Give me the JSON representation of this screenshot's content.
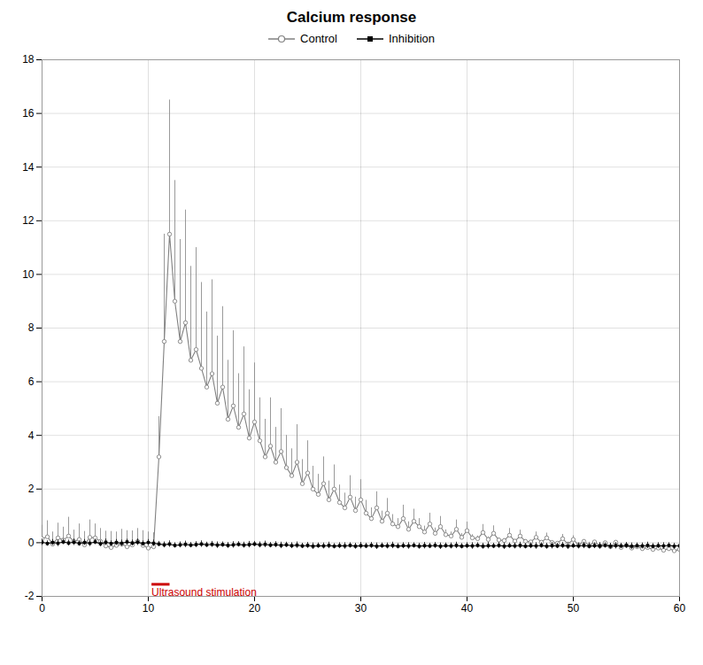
{
  "chart_data": {
    "type": "line",
    "title": "Calcium response",
    "x": [
      0,
      0.5,
      1,
      1.5,
      2,
      2.5,
      3,
      3.5,
      4,
      4.5,
      5,
      5.5,
      6,
      6.5,
      7,
      7.5,
      8,
      8.5,
      9,
      9.5,
      10,
      10.5,
      11,
      11.5,
      12,
      12.5,
      13,
      13.5,
      14,
      14.5,
      15,
      15.5,
      16,
      16.5,
      17,
      17.5,
      18,
      18.5,
      19,
      19.5,
      20,
      20.5,
      21,
      21.5,
      22,
      22.5,
      23,
      23.5,
      24,
      24.5,
      25,
      25.5,
      26,
      26.5,
      27,
      27.5,
      28,
      28.5,
      29,
      29.5,
      30,
      30.5,
      31,
      31.5,
      32,
      32.5,
      33,
      33.5,
      34,
      34.5,
      35,
      35.5,
      36,
      36.5,
      37,
      37.5,
      38,
      38.5,
      39,
      39.5,
      40,
      40.5,
      41,
      41.5,
      42,
      42.5,
      43,
      43.5,
      44,
      44.5,
      45,
      45.5,
      46,
      46.5,
      47,
      47.5,
      48,
      48.5,
      49,
      49.5,
      50,
      50.5,
      51,
      51.5,
      52,
      52.5,
      53,
      53.5,
      54,
      54.5,
      55,
      55.5,
      56,
      56.5,
      57,
      57.5,
      58,
      58.5,
      59,
      59.5,
      60
    ],
    "series": [
      {
        "name": "Control",
        "color": "#808080",
        "marker": "circle",
        "values": [
          0.15,
          0.22,
          -0.05,
          0.18,
          0.1,
          0.25,
          0.05,
          0.12,
          -0.08,
          0.2,
          0.18,
          0.05,
          -0.12,
          -0.18,
          -0.1,
          -0.05,
          -0.15,
          -0.08,
          0.05,
          -0.1,
          -0.2,
          -0.15,
          3.2,
          7.5,
          11.5,
          9.0,
          7.5,
          8.2,
          6.8,
          7.2,
          6.5,
          5.8,
          6.3,
          5.2,
          5.8,
          4.6,
          5.1,
          4.3,
          4.8,
          3.9,
          4.5,
          3.8,
          3.2,
          3.6,
          3.0,
          3.4,
          2.8,
          2.5,
          3.0,
          2.2,
          2.6,
          2.0,
          1.8,
          2.2,
          1.6,
          2.0,
          1.5,
          1.3,
          1.7,
          1.2,
          1.6,
          1.1,
          0.9,
          1.3,
          0.8,
          1.1,
          0.7,
          0.6,
          0.9,
          0.5,
          0.8,
          0.6,
          0.4,
          0.7,
          0.35,
          0.6,
          0.3,
          0.25,
          0.5,
          0.2,
          0.45,
          0.18,
          0.15,
          0.38,
          0.12,
          0.35,
          0.1,
          0.08,
          0.28,
          0.06,
          0.25,
          0.05,
          0.03,
          0.2,
          0.02,
          0.18,
          0.01,
          -0.02,
          0.15,
          -0.05,
          0.12,
          -0.08,
          0.05,
          -0.1,
          0.03,
          -0.12,
          0.0,
          -0.15,
          0.02,
          -0.18,
          -0.1,
          -0.2,
          -0.15,
          -0.22,
          -0.18,
          -0.25,
          -0.2,
          -0.28,
          -0.22,
          -0.3,
          -0.25
        ],
        "error_upper": [
          0.5,
          0.6,
          0.45,
          0.55,
          0.48,
          0.7,
          0.42,
          0.58,
          0.5,
          0.65,
          0.52,
          0.48,
          0.55,
          0.6,
          0.5,
          0.55,
          0.6,
          0.52,
          0.48,
          0.55,
          0.6,
          0.52,
          1.5,
          4.0,
          5.0,
          4.5,
          3.8,
          4.2,
          3.5,
          3.8,
          3.2,
          2.8,
          3.5,
          2.5,
          3.0,
          2.2,
          2.8,
          2.0,
          2.5,
          1.8,
          2.2,
          1.6,
          1.4,
          1.8,
          1.3,
          1.6,
          1.2,
          1.0,
          1.4,
          0.9,
          1.2,
          0.85,
          0.75,
          1.0,
          0.7,
          0.9,
          0.65,
          0.55,
          0.8,
          0.5,
          0.75,
          0.48,
          0.4,
          0.6,
          0.38,
          0.55,
          0.35,
          0.3,
          0.5,
          0.28,
          0.45,
          0.3,
          0.22,
          0.4,
          0.2,
          0.38,
          0.18,
          0.15,
          0.35,
          0.14,
          0.32,
          0.12,
          0.1,
          0.3,
          0.1,
          0.28,
          0.08,
          0.07,
          0.25,
          0.06,
          0.22,
          0.05,
          0.04,
          0.2,
          0.04,
          0.18,
          0.03,
          0.03,
          0.16,
          0.03,
          0.14,
          0.03,
          0.03,
          0.12,
          0.03,
          0.12,
          0.02,
          0.12,
          0.02,
          0.12,
          0.02,
          0.12,
          0.02,
          0.12,
          0.02,
          0.12,
          0.02,
          0.12,
          0.02,
          0.12,
          0.02
        ]
      },
      {
        "name": "Inhibition",
        "color": "#000000",
        "marker": "square",
        "values": [
          0.02,
          -0.03,
          0.01,
          -0.02,
          0.03,
          -0.01,
          0.02,
          -0.03,
          0.01,
          -0.02,
          0.03,
          -0.04,
          0.02,
          -0.03,
          0.01,
          -0.02,
          0.03,
          -0.01,
          0.02,
          -0.03,
          0.01,
          -0.02,
          -0.05,
          -0.08,
          -0.05,
          -0.1,
          -0.08,
          -0.06,
          -0.09,
          -0.07,
          -0.05,
          -0.08,
          -0.06,
          -0.09,
          -0.07,
          -0.1,
          -0.08,
          -0.06,
          -0.09,
          -0.07,
          -0.05,
          -0.08,
          -0.06,
          -0.09,
          -0.07,
          -0.1,
          -0.08,
          -0.11,
          -0.09,
          -0.12,
          -0.1,
          -0.13,
          -0.11,
          -0.12,
          -0.1,
          -0.13,
          -0.11,
          -0.12,
          -0.1,
          -0.13,
          -0.11,
          -0.12,
          -0.1,
          -0.13,
          -0.11,
          -0.12,
          -0.1,
          -0.13,
          -0.11,
          -0.12,
          -0.1,
          -0.13,
          -0.11,
          -0.12,
          -0.1,
          -0.13,
          -0.11,
          -0.12,
          -0.1,
          -0.13,
          -0.11,
          -0.12,
          -0.1,
          -0.13,
          -0.11,
          -0.12,
          -0.1,
          -0.13,
          -0.11,
          -0.12,
          -0.1,
          -0.13,
          -0.11,
          -0.12,
          -0.1,
          -0.13,
          -0.11,
          -0.12,
          -0.1,
          -0.13,
          -0.11,
          -0.12,
          -0.1,
          -0.13,
          -0.11,
          -0.12,
          -0.1,
          -0.13,
          -0.11,
          -0.12,
          -0.1,
          -0.13,
          -0.11,
          -0.12,
          -0.1,
          -0.13,
          -0.11,
          -0.12,
          -0.1,
          -0.13,
          -0.11
        ],
        "error": [
          0.12,
          0.1,
          0.11,
          0.12,
          0.1,
          0.11,
          0.12,
          0.1,
          0.11,
          0.12,
          0.1,
          0.11,
          0.12,
          0.1,
          0.11,
          0.12,
          0.1,
          0.11,
          0.12,
          0.1,
          0.11,
          0.12,
          0.1,
          0.11,
          0.12,
          0.1,
          0.11,
          0.12,
          0.1,
          0.11,
          0.12,
          0.1,
          0.11,
          0.12,
          0.1,
          0.11,
          0.12,
          0.1,
          0.11,
          0.12,
          0.1,
          0.11,
          0.12,
          0.1,
          0.11,
          0.12,
          0.1,
          0.11,
          0.12,
          0.1,
          0.11,
          0.12,
          0.1,
          0.11,
          0.12,
          0.1,
          0.11,
          0.12,
          0.1,
          0.11,
          0.12,
          0.1,
          0.11,
          0.12,
          0.1,
          0.11,
          0.12,
          0.1,
          0.11,
          0.12,
          0.1,
          0.11,
          0.12,
          0.1,
          0.11,
          0.12,
          0.1,
          0.11,
          0.12,
          0.1,
          0.11,
          0.12,
          0.1,
          0.11,
          0.12,
          0.1,
          0.11,
          0.12,
          0.1,
          0.11,
          0.12,
          0.1,
          0.11,
          0.12,
          0.1,
          0.11,
          0.12,
          0.1,
          0.11,
          0.12,
          0.1,
          0.11,
          0.12,
          0.1,
          0.11,
          0.12,
          0.1,
          0.11,
          0.12,
          0.1,
          0.11,
          0.12,
          0.1,
          0.11,
          0.12,
          0.1,
          0.11,
          0.12,
          0.1,
          0.11,
          0.11
        ]
      }
    ],
    "annotations": [
      {
        "text": "Ultrasound stimulation",
        "x": [
          10.3,
          12.0
        ],
        "y": -1.55,
        "color": "#cc0000"
      }
    ],
    "xlim": [
      0,
      60
    ],
    "xticks": [
      0,
      10,
      20,
      30,
      40,
      50,
      60
    ],
    "ylim": [
      -2,
      18
    ],
    "yticks": [
      -2,
      0,
      2,
      4,
      6,
      8,
      10,
      12,
      14,
      16,
      18
    ],
    "grid": true,
    "legend": "top"
  }
}
